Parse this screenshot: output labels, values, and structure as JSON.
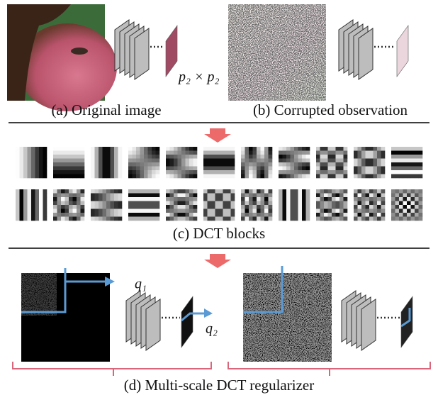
{
  "panels": {
    "a": {
      "caption": "(a) Original image",
      "patch_label": "p₂ × p₂"
    },
    "b": {
      "caption": "(b)  Corrupted observation"
    },
    "c": {
      "caption": "(c) DCT blocks"
    },
    "d": {
      "caption": "(d) Multi-scale DCT regularizer",
      "scale_1": "q₁",
      "scale_2": "q₂"
    }
  }
}
